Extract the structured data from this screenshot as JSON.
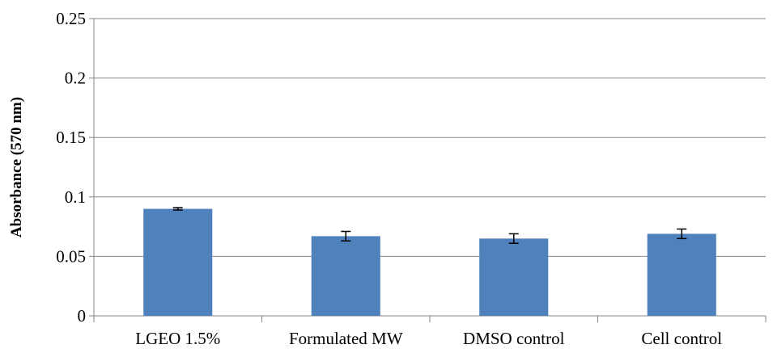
{
  "chart_data": {
    "type": "bar",
    "title": "",
    "xlabel": "",
    "ylabel": "Absorbance  (570 nm)",
    "categories": [
      "LGEO 1.5%",
      "Formulated MW",
      "DMSO control",
      "Cell control"
    ],
    "values": [
      0.09,
      0.067,
      0.065,
      0.069
    ],
    "error": [
      0.001,
      0.004,
      0.004,
      0.004
    ],
    "ylim": [
      0,
      0.25
    ],
    "yticks": [
      0,
      0.05,
      0.1,
      0.15,
      0.2,
      0.25
    ],
    "ytick_labels": [
      "0",
      "0.05",
      "0.1",
      "0.15",
      "0.2",
      "0.25"
    ],
    "grid": true,
    "legend": "none",
    "colors": {
      "bar": "#4F81BD",
      "gridline": "#868686",
      "axis": "#868686",
      "errorbar": "#000000"
    }
  }
}
